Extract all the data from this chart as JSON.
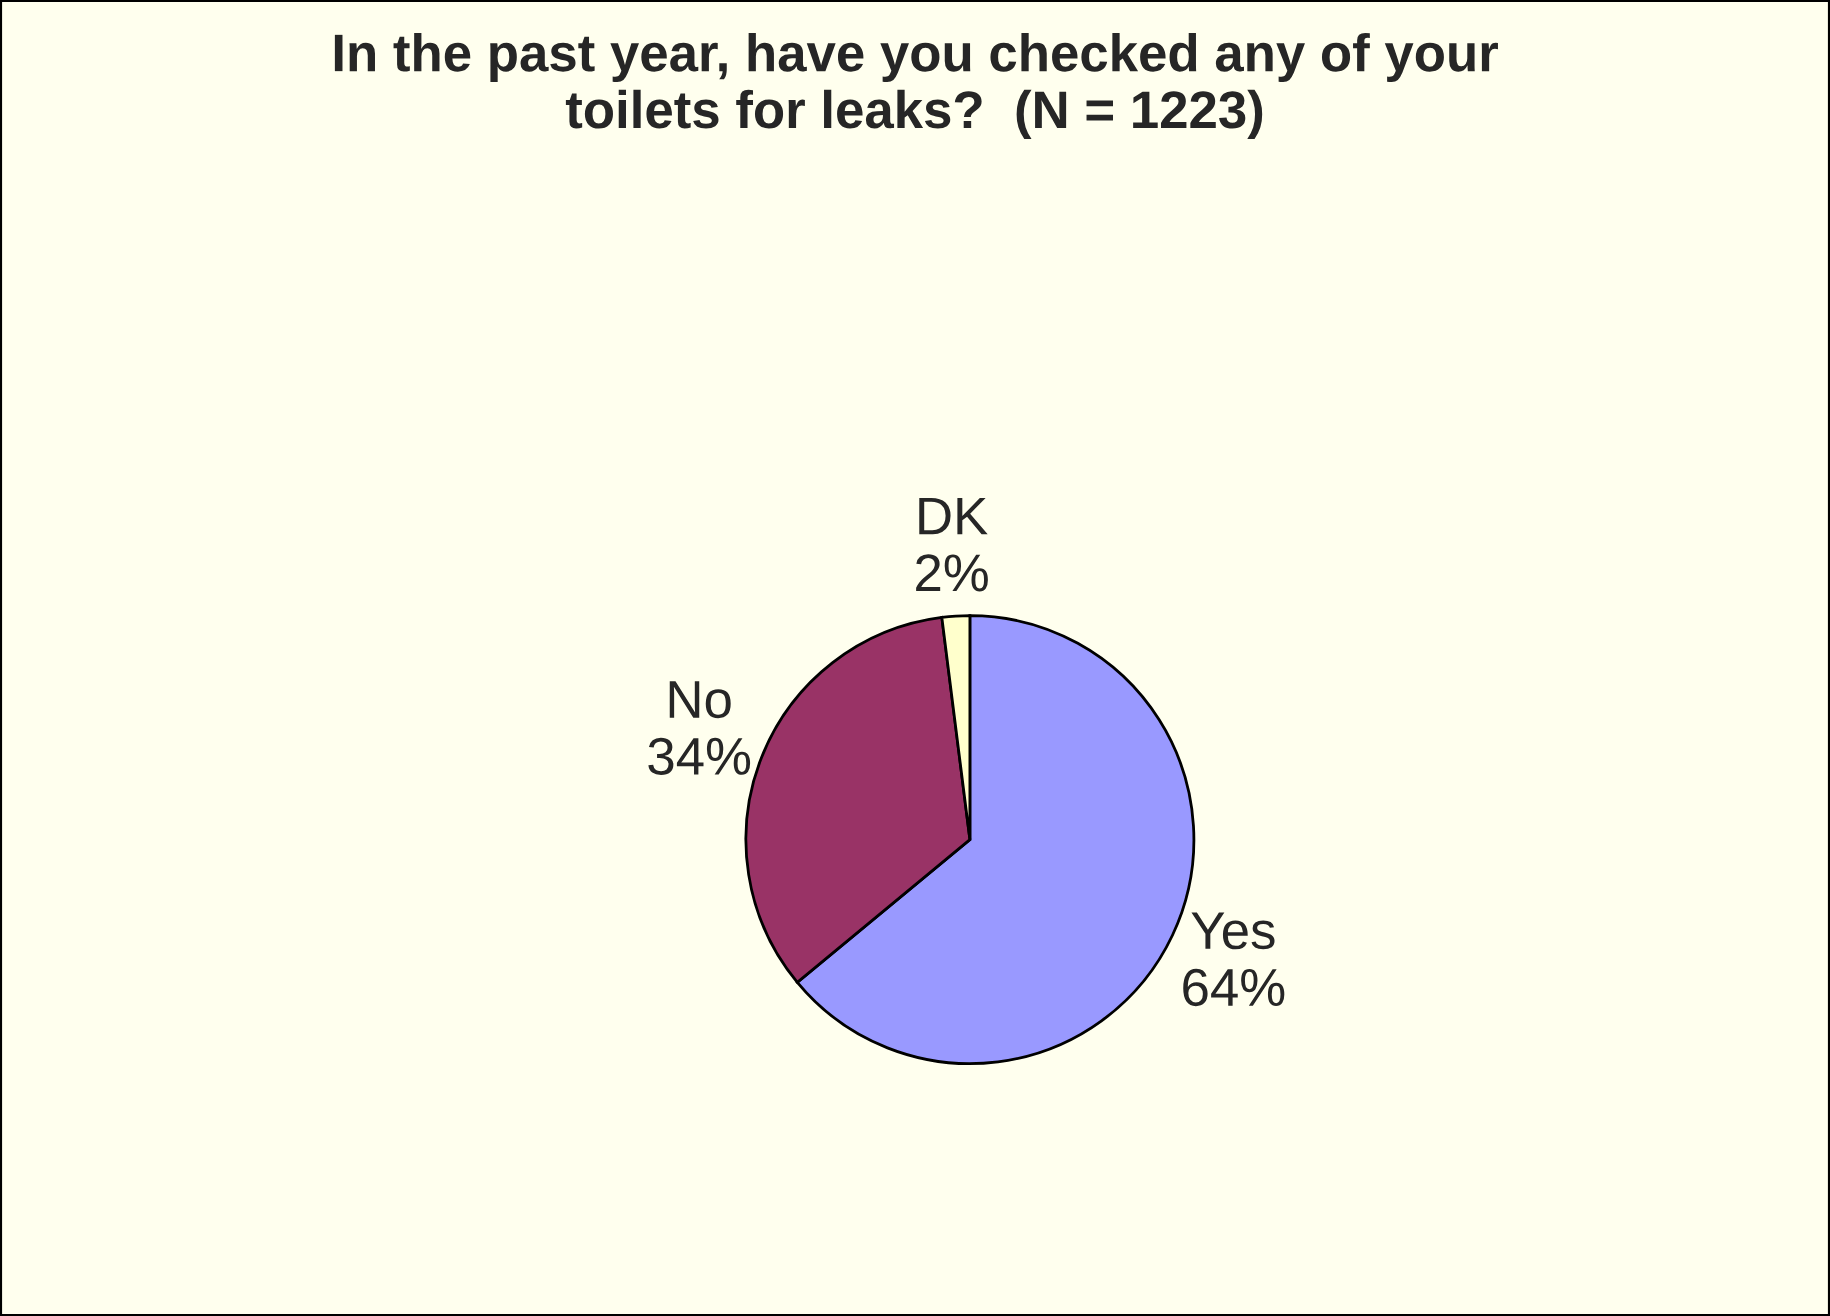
{
  "chart_data": {
    "type": "pie",
    "title": "In the past year, have you checked any of your\ntoilets for leaks?  (N = 1223)",
    "categories": [
      "Yes",
      "No",
      "DK"
    ],
    "values": [
      64,
      34,
      2
    ],
    "value_labels": [
      "64%",
      "34%",
      "2%"
    ],
    "colors": [
      "#9999ff",
      "#993366",
      "#ffffcc"
    ],
    "legend": false
  }
}
